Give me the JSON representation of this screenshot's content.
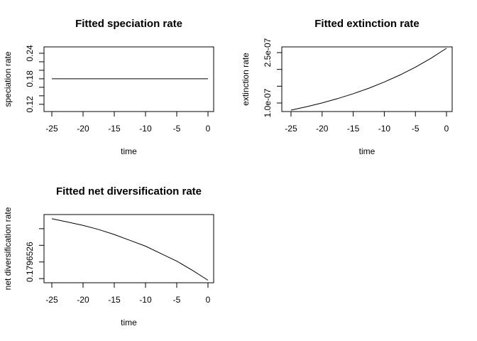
{
  "chart_data": [
    {
      "type": "line",
      "title": "Fitted speciation rate",
      "xlabel": "time",
      "ylabel": "speciation rate",
      "x": [
        -25,
        -22.5,
        -20,
        -17.5,
        -15,
        -12.5,
        -10,
        -7.5,
        -5,
        -2.5,
        0
      ],
      "values": [
        0.18,
        0.18,
        0.18,
        0.18,
        0.18,
        0.18,
        0.18,
        0.18,
        0.18,
        0.18,
        0.18
      ],
      "color": "#000000",
      "xlim": [
        -26.25,
        0.91
      ],
      "xticks": [
        -25,
        -20,
        -15,
        -10,
        -5,
        0
      ],
      "ylim": [
        0.103,
        0.255
      ],
      "yticks": [
        0.12,
        {
          "value": 0.14,
          "label": null
        },
        {
          "value": 0.16,
          "label": null
        },
        0.18,
        {
          "value": 0.2,
          "label": null
        },
        {
          "value": 0.22,
          "label": null
        },
        0.24
      ]
    },
    {
      "type": "line",
      "title": "Fitted extinction rate",
      "xlabel": "time",
      "ylabel": "extinction rate",
      "x": [
        -25,
        -22.5,
        -20,
        -17.5,
        -15,
        -12.5,
        -10,
        -7.5,
        -5,
        -2.5,
        0
      ],
      "values": [
        7.88e-08,
        8.89e-08,
        1.003e-07,
        1.131e-07,
        1.276e-07,
        1.439e-07,
        1.624e-07,
        1.832e-07,
        2.067e-07,
        2.331e-07,
        2.63e-07
      ],
      "color": "#000000",
      "xlim": [
        -26.48,
        0.91
      ],
      "xticks": [
        -25,
        -20,
        -15,
        -10,
        -5,
        0
      ],
      "ylim": [
        7.46e-08,
        2.67e-07
      ],
      "yticks": [
        {
          "value": 1e-07,
          "label": "1.0e-07"
        },
        {
          "value": 1.5e-07,
          "label": null
        },
        {
          "value": 2e-07,
          "label": null
        },
        {
          "value": 2.5e-07,
          "label": "2.5e-07"
        }
      ]
    },
    {
      "type": "line",
      "title": "Fitted net diversification rate",
      "xlabel": "time",
      "ylabel": "net diversification rate",
      "x": [
        -25,
        -22.5,
        -20,
        -17.5,
        -15,
        -12.5,
        -10,
        -7.5,
        -5,
        -2.5,
        0
      ],
      "values": [
        0.17965312,
        0.17965308,
        0.17965304,
        0.17965299,
        0.17965293,
        0.17965286,
        0.17965279,
        0.1796527,
        0.17965261,
        0.1796525,
        0.17965238
      ],
      "color": "#000000",
      "xlim": [
        -26.25,
        0.91
      ],
      "xticks": [
        -25,
        -20,
        -15,
        -10,
        -5,
        0
      ],
      "ylim": [
        0.17965235,
        0.17965317
      ],
      "yticks": [
        {
          "value": 0.1796524,
          "label": null
        },
        0.1796526,
        {
          "value": 0.1796528,
          "label": null
        },
        {
          "value": 0.179653,
          "label": null
        }
      ]
    }
  ]
}
